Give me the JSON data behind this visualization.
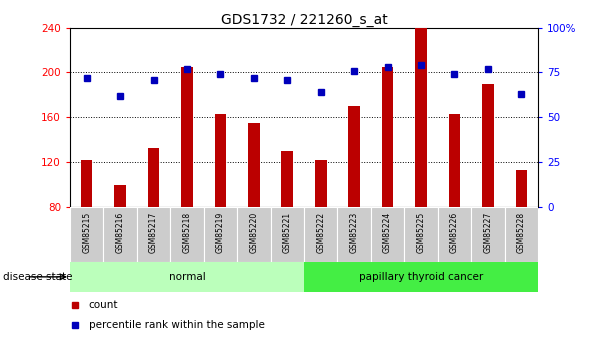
{
  "title": "GDS1732 / 221260_s_at",
  "samples": [
    "GSM85215",
    "GSM85216",
    "GSM85217",
    "GSM85218",
    "GSM85219",
    "GSM85220",
    "GSM85221",
    "GSM85222",
    "GSM85223",
    "GSM85224",
    "GSM85225",
    "GSM85226",
    "GSM85227",
    "GSM85228"
  ],
  "count_values": [
    122,
    100,
    133,
    205,
    163,
    155,
    130,
    122,
    170,
    205,
    240,
    163,
    190,
    113
  ],
  "percentile_values": [
    72,
    62,
    71,
    77,
    74,
    72,
    71,
    64,
    76,
    78,
    79,
    74,
    77,
    63
  ],
  "ymin": 80,
  "ymax": 240,
  "yticks_left": [
    80,
    120,
    160,
    200,
    240
  ],
  "yticks_right": [
    0,
    25,
    50,
    75,
    100
  ],
  "bar_color": "#bb0000",
  "dot_color": "#0000bb",
  "group_labels": [
    "normal",
    "papillary thyroid cancer"
  ],
  "group_ranges": [
    [
      0,
      6
    ],
    [
      7,
      13
    ]
  ],
  "group_colors_normal": "#bbffbb",
  "group_colors_cancer": "#44ee44",
  "disease_state_label": "disease state",
  "legend_count": "count",
  "legend_percentile": "percentile rank within the sample",
  "background_color": "#ffffff",
  "tick_bg_color": "#cccccc",
  "bar_width": 0.35,
  "marker_size": 5
}
